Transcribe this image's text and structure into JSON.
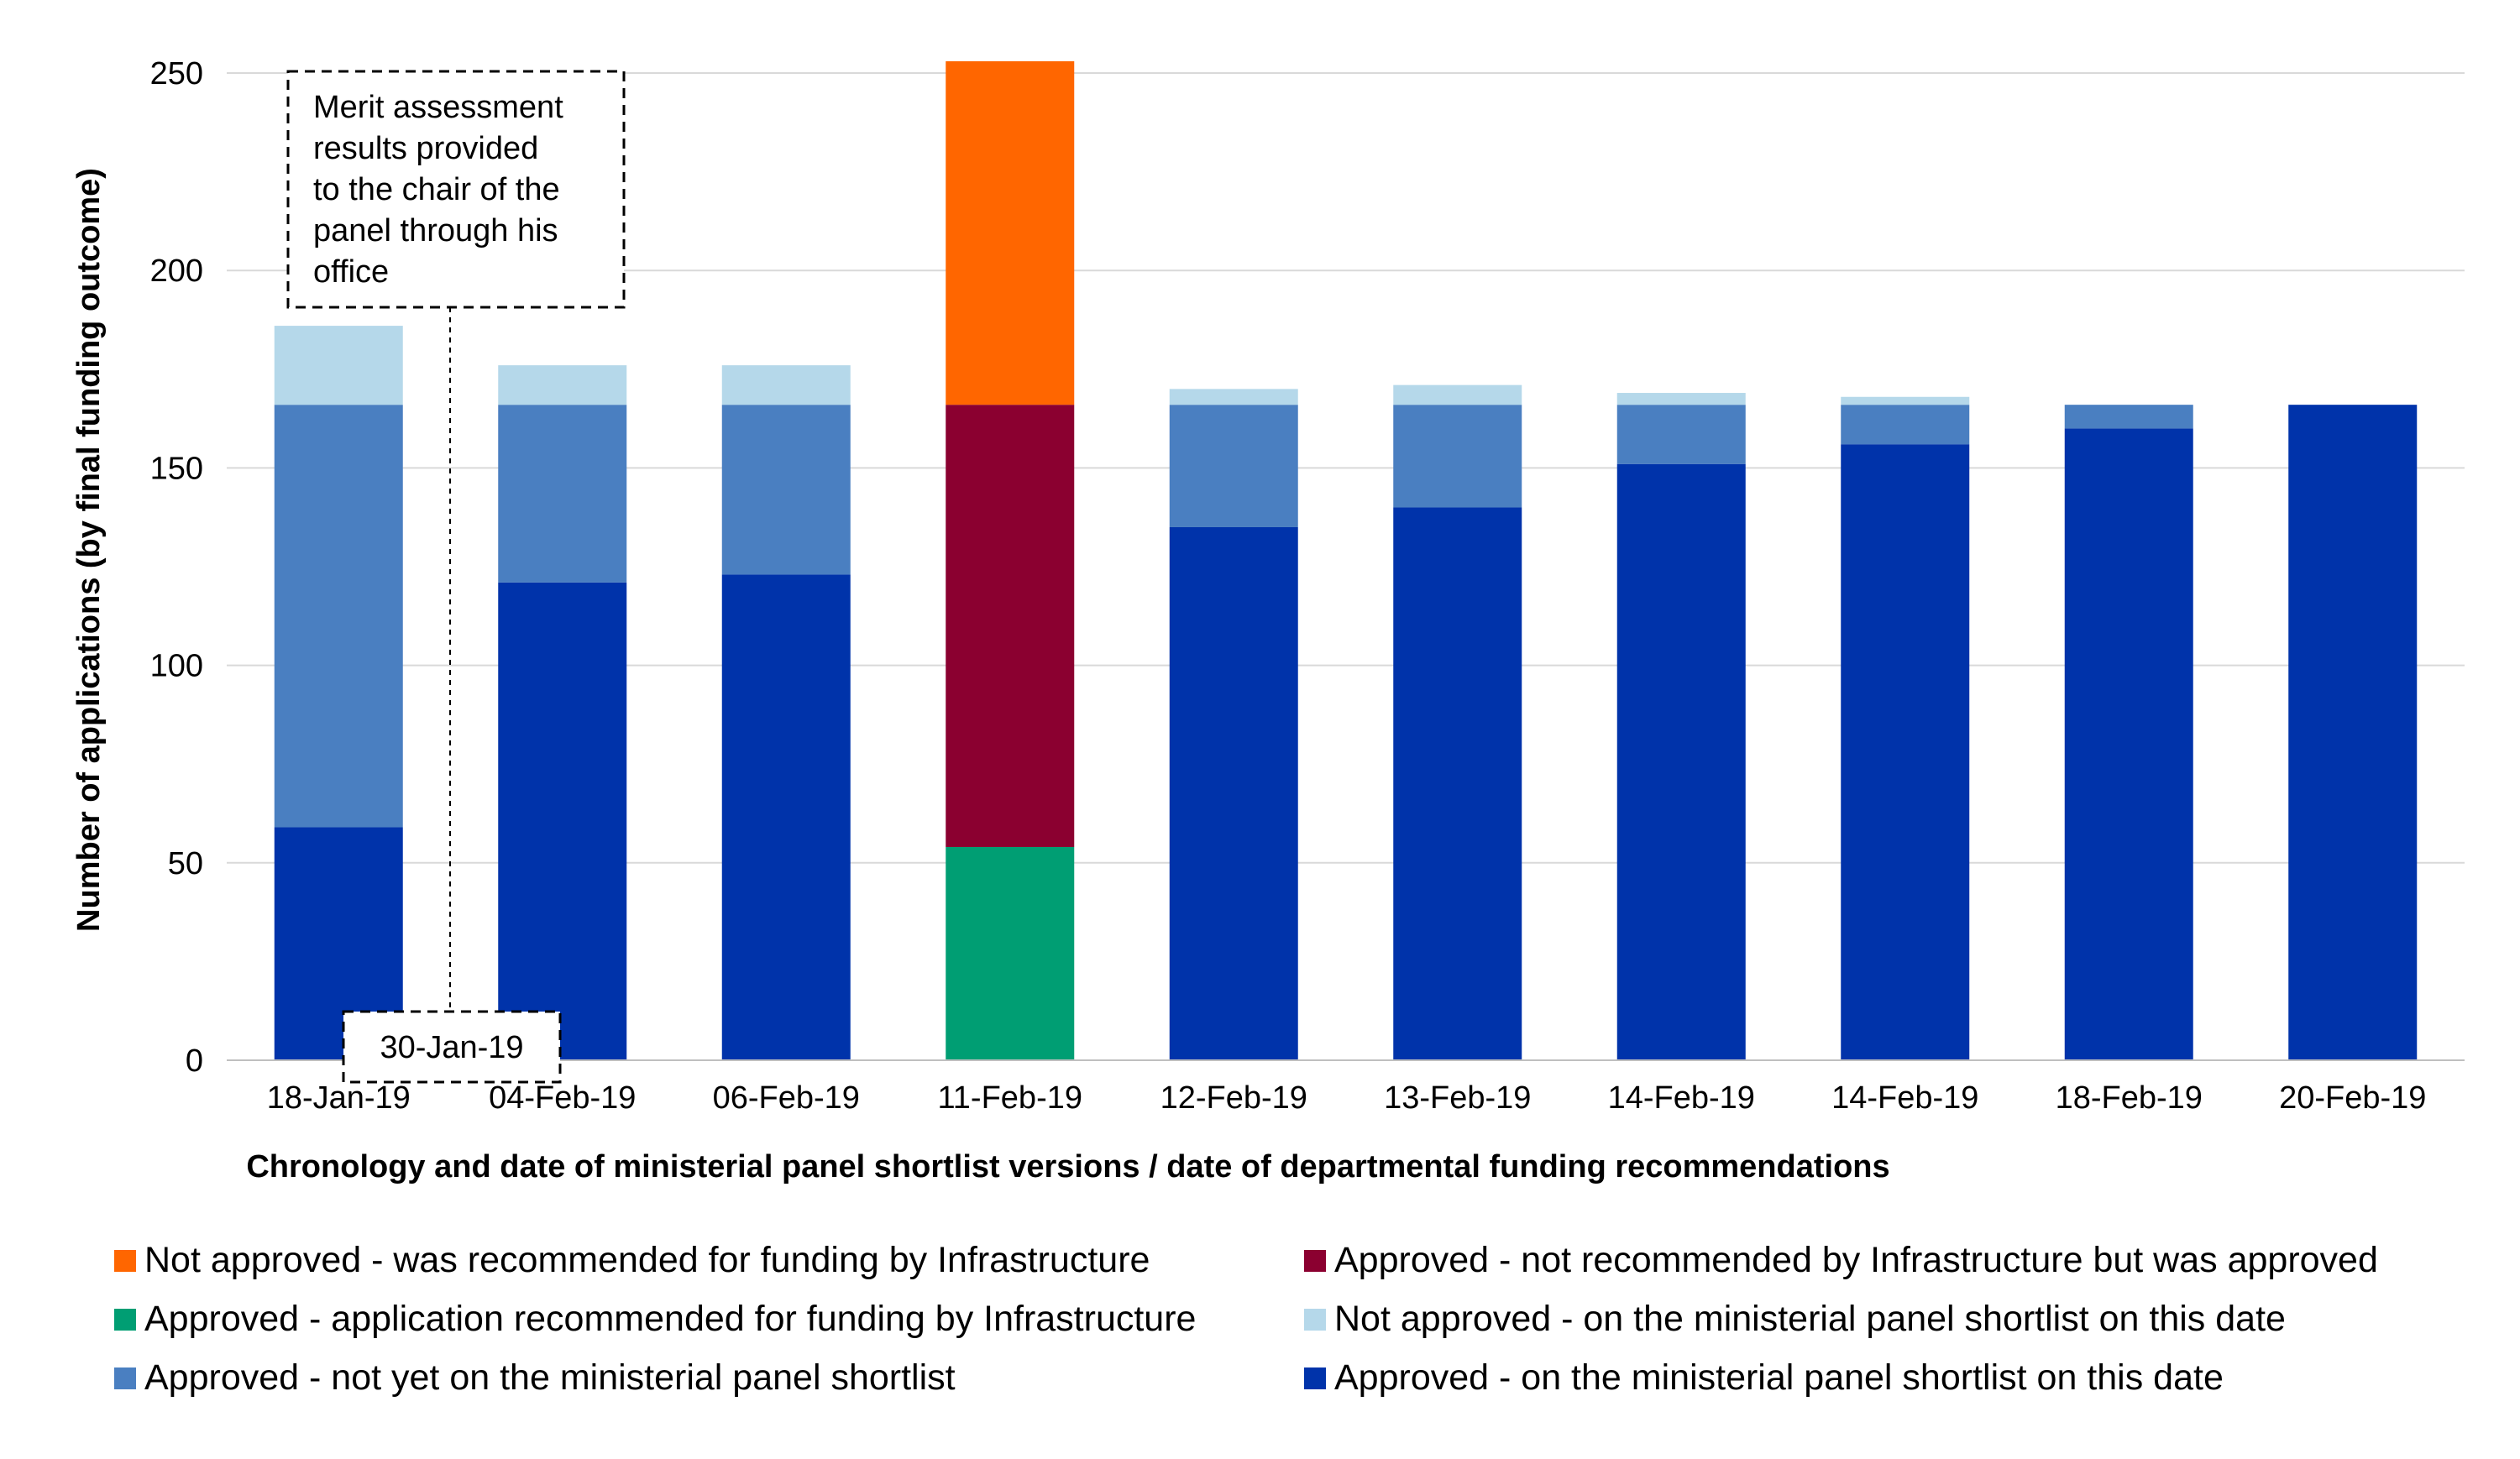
{
  "chart_data": {
    "type": "bar",
    "stacked": true,
    "title": "",
    "xlabel": "Chronology and date of ministerial panel shortlist versions / date of departmental funding recommendations",
    "ylabel": "Number of applications (by final funding outcome)",
    "ylim": [
      0,
      260
    ],
    "yticks": [
      "0",
      "50",
      "100",
      "150",
      "200",
      "250"
    ],
    "grid": true,
    "legend_position": "bottom",
    "categories": [
      "18-Jan-19",
      "04-Feb-19",
      "06-Feb-19",
      "11-Feb-19",
      "12-Feb-19",
      "13-Feb-19",
      "14-Feb-19",
      "14-Feb-19",
      "18-Feb-19",
      "20-Feb-19"
    ],
    "series": [
      {
        "name": "Approved - on the ministerial panel shortlist on this date",
        "color": "#0033AA",
        "values": [
          59,
          121,
          123,
          0,
          135,
          140,
          151,
          156,
          160,
          166
        ]
      },
      {
        "name": "Approved - application recommended for funding by Infrastructure",
        "color": "#009E73",
        "values": [
          0,
          0,
          0,
          54,
          0,
          0,
          0,
          0,
          0,
          0
        ]
      },
      {
        "name": "Approved - not yet on the ministerial panel shortlist",
        "color": "#4A7FC1",
        "values": [
          107,
          45,
          43,
          0,
          31,
          26,
          15,
          10,
          6,
          0
        ]
      },
      {
        "name": "Approved - not recommended by Infrastructure but was approved",
        "color": "#8B0030",
        "values": [
          0,
          0,
          0,
          112,
          0,
          0,
          0,
          0,
          0,
          0
        ]
      },
      {
        "name": "Not approved - on the ministerial panel shortlist on this date",
        "color": "#B5D8EA",
        "values": [
          20,
          10,
          10,
          0,
          4,
          5,
          3,
          2,
          0,
          0
        ]
      },
      {
        "name": "Not approved - was recommended for funding by Infrastructure",
        "color": "#FF6600",
        "values": [
          0,
          0,
          0,
          87,
          0,
          0,
          0,
          0,
          0,
          0
        ]
      }
    ],
    "legend_order": [
      5,
      3,
      1,
      4,
      2,
      0
    ],
    "annotations": {
      "marker_date": "30-Jan-19",
      "marker_note": [
        "Merit assessment",
        "results provided",
        "to the chair of the",
        "panel through his",
        "office"
      ]
    }
  }
}
